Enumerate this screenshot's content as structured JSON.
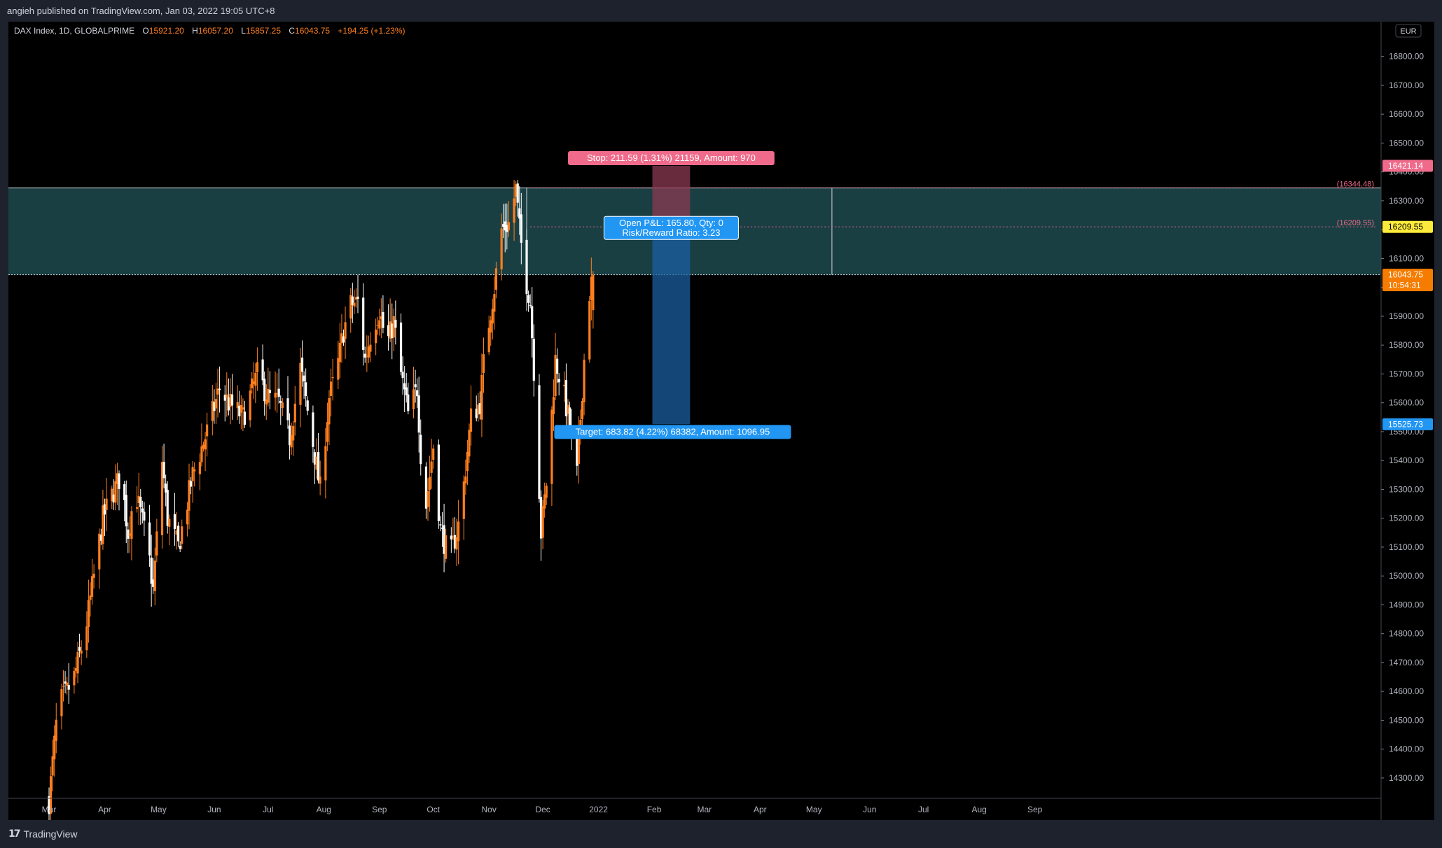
{
  "header": {
    "published": "angieh published on TradingView.com, Jan 03, 2022 19:05 UTC+8"
  },
  "footer": {
    "brand": "TradingView",
    "logo": "tradingview-logo-icon"
  },
  "colors": {
    "background": "#000000",
    "chrome": "#1e222d",
    "up": "#ff7f1e",
    "down": "#ffffff",
    "zone": "#1e4a4f",
    "stop": "#f06b8b",
    "target": "#2196f3",
    "last_price": "#f57c00",
    "yellow_label": "#ffeb3b"
  },
  "legend": {
    "symbol": "DAX Index, 1D, GLOBALPRIME",
    "o_label": "O",
    "o": "15921.20",
    "h_label": "H",
    "h": "16057.20",
    "l_label": "L",
    "l": "15857.25",
    "c_label": "C",
    "c": "16043.75",
    "change": "+194.25 (+1.23%)"
  },
  "currency": "EUR",
  "price_labels": {
    "stop_price": "16421.14",
    "entry_price": "16209.55",
    "last_price": "16043.75",
    "countdown": "10:54:31",
    "target_price": "15525.73"
  },
  "zone_line_labels": {
    "top": "(16344.48)",
    "mid": "(16209.55)"
  },
  "position_tool": {
    "stop": "Stop: 211.59 (1.31%) 21159, Amount: 970",
    "pnl": "Open P&L: 165.80, Qty: 0",
    "rr": "Risk/Reward Ratio: 3.23",
    "target": "Target: 683.82 (4.22%) 68382, Amount: 1096.95"
  },
  "chart_data": {
    "type": "candlestick",
    "symbol": "DAX Index",
    "interval": "1D",
    "exchange": "GLOBALPRIME",
    "ylim": [
      14200,
      16900
    ],
    "y_ticks": [
      "16800.00",
      "16700.00",
      "16600.00",
      "16500.00",
      "16400.00",
      "16300.00",
      "16200.00",
      "16100.00",
      "16000.00",
      "15900.00",
      "15800.00",
      "15700.00",
      "15600.00",
      "15500.00",
      "15400.00",
      "15300.00",
      "15200.00",
      "15100.00",
      "15000.00",
      "14900.00",
      "14800.00",
      "14700.00",
      "14600.00",
      "14500.00",
      "14400.00",
      "14300.00"
    ],
    "x_ticks": [
      "Mar",
      "Apr",
      "May",
      "Jun",
      "Jul",
      "Aug",
      "Sep",
      "Oct",
      "Nov",
      "Dec",
      "2022",
      "Feb",
      "Mar",
      "Apr",
      "May",
      "Jun",
      "Jul",
      "Aug",
      "Sep"
    ],
    "x_tick_days": [
      0,
      31,
      61,
      92,
      122,
      153,
      184,
      214,
      245,
      275,
      306,
      337,
      365,
      396,
      426,
      457,
      487,
      518,
      549
    ],
    "anchors": [
      [
        0,
        14220
      ],
      [
        5,
        14550
      ],
      [
        10,
        14600
      ],
      [
        14,
        14650
      ],
      [
        20,
        14800
      ],
      [
        25,
        15000
      ],
      [
        30,
        15200
      ],
      [
        33,
        15250
      ],
      [
        40,
        15350
      ],
      [
        44,
        15150
      ],
      [
        48,
        15300
      ],
      [
        55,
        15100
      ],
      [
        58,
        14950
      ],
      [
        63,
        15400
      ],
      [
        66,
        15200
      ],
      [
        72,
        15100
      ],
      [
        80,
        15350
      ],
      [
        88,
        15500
      ],
      [
        95,
        15650
      ],
      [
        100,
        15600
      ],
      [
        108,
        15550
      ],
      [
        116,
        15700
      ],
      [
        122,
        15620
      ],
      [
        128,
        15600
      ],
      [
        134,
        15480
      ],
      [
        140,
        15720
      ],
      [
        146,
        15500
      ],
      [
        151,
        15300
      ],
      [
        156,
        15620
      ],
      [
        160,
        15700
      ],
      [
        164,
        15850
      ],
      [
        168,
        15940
      ],
      [
        172,
        15950
      ],
      [
        176,
        15750
      ],
      [
        180,
        15860
      ],
      [
        184,
        15920
      ],
      [
        188,
        15800
      ],
      [
        192,
        15880
      ],
      [
        196,
        15700
      ],
      [
        200,
        15560
      ],
      [
        205,
        15650
      ],
      [
        209,
        15200
      ],
      [
        214,
        15450
      ],
      [
        218,
        15160
      ],
      [
        223,
        15060
      ],
      [
        229,
        15200
      ],
      [
        235,
        15550
      ],
      [
        240,
        15600
      ],
      [
        243,
        15800
      ],
      [
        248,
        16000
      ],
      [
        252,
        16200
      ],
      [
        256,
        16220
      ],
      [
        260,
        16340
      ],
      [
        262,
        16200
      ],
      [
        265,
        16050
      ],
      [
        268,
        15950
      ],
      [
        271,
        15600
      ],
      [
        274,
        15150
      ],
      [
        278,
        15380
      ],
      [
        282,
        15750
      ],
      [
        287,
        15620
      ],
      [
        290,
        15520
      ],
      [
        294,
        15350
      ],
      [
        297,
        15650
      ],
      [
        300,
        15950
      ],
      [
        303,
        16043.75
      ]
    ],
    "last": {
      "open": 15921.2,
      "high": 16057.2,
      "low": 15857.25,
      "close": 16043.75,
      "change": "+194.25 (+1.23%)"
    },
    "zone": {
      "top": 16344.48,
      "bottom": 16043.75
    },
    "position": {
      "entry": 16209.55,
      "stop": 16421.14,
      "target": 15525.73,
      "start_day": 336,
      "end_day": 357
    },
    "vlines_days": [
      266,
      436
    ],
    "grid": false
  }
}
